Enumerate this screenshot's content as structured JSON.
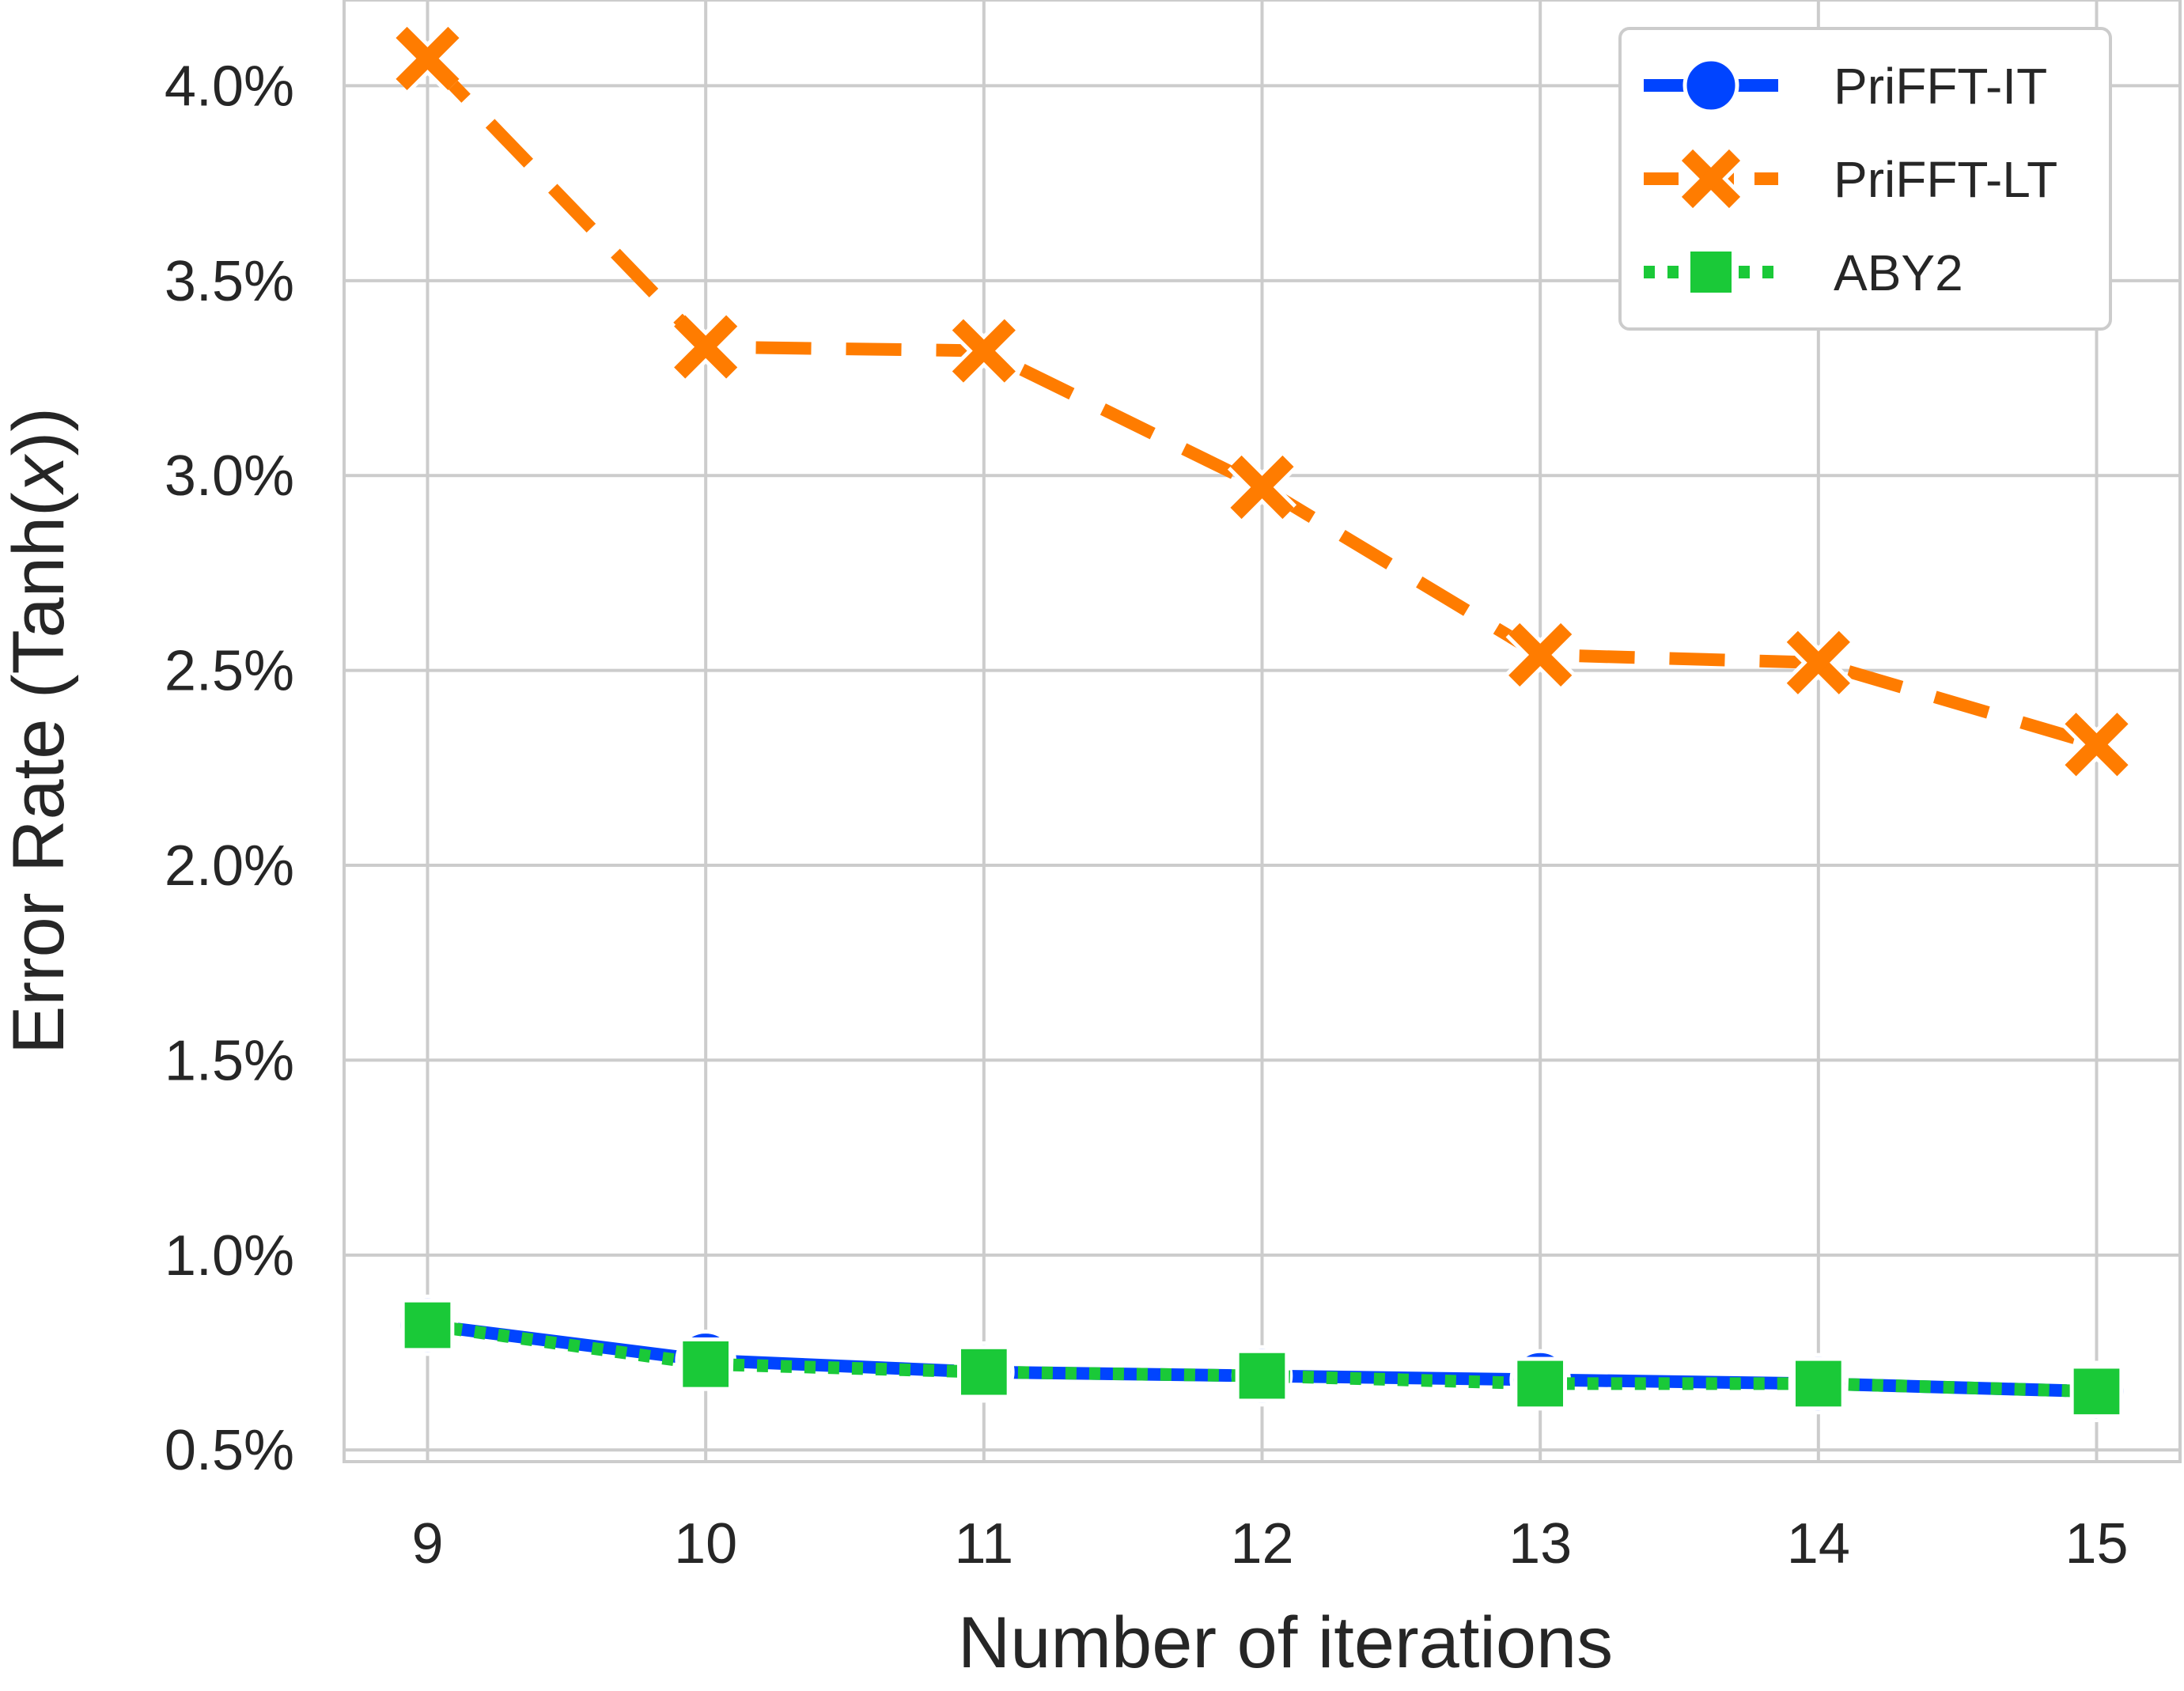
{
  "chart_data": {
    "type": "line",
    "title": "",
    "xlabel": "Number of iterations",
    "ylabel": "Error Rate (Tanh(x))",
    "ylabel_parts": {
      "prefix": "Error Rate (Tanh(",
      "var": "x",
      "suffix": "))"
    },
    "x": [
      9,
      10,
      11,
      12,
      13,
      14,
      15
    ],
    "xlim": [
      8.7,
      15.3
    ],
    "ylim": [
      0.47,
      4.22
    ],
    "yticks": [
      0.5,
      1.0,
      1.5,
      2.0,
      2.5,
      3.0,
      3.5,
      4.0
    ],
    "ytick_labels": [
      "0.5%",
      "1.0%",
      "1.5%",
      "2.0%",
      "2.5%",
      "3.0%",
      "3.5%",
      "4.0%"
    ],
    "grid": true,
    "legend_position": "top-right",
    "series": [
      {
        "name": "PriFFT-IT",
        "color": "#0044ff",
        "marker": "circle",
        "linestyle": "solid",
        "values": [
          0.82,
          0.73,
          0.7,
          0.69,
          0.68,
          0.67,
          0.65
        ]
      },
      {
        "name": "PriFFT-LT",
        "color": "#ff7c00",
        "marker": "x",
        "linestyle": "dashed",
        "values": [
          4.07,
          3.33,
          3.32,
          2.97,
          2.54,
          2.52,
          2.31
        ]
      },
      {
        "name": "ABY2",
        "color": "#1ac938",
        "marker": "square",
        "linestyle": "dotted",
        "values": [
          0.82,
          0.72,
          0.7,
          0.69,
          0.67,
          0.67,
          0.65
        ]
      }
    ]
  }
}
